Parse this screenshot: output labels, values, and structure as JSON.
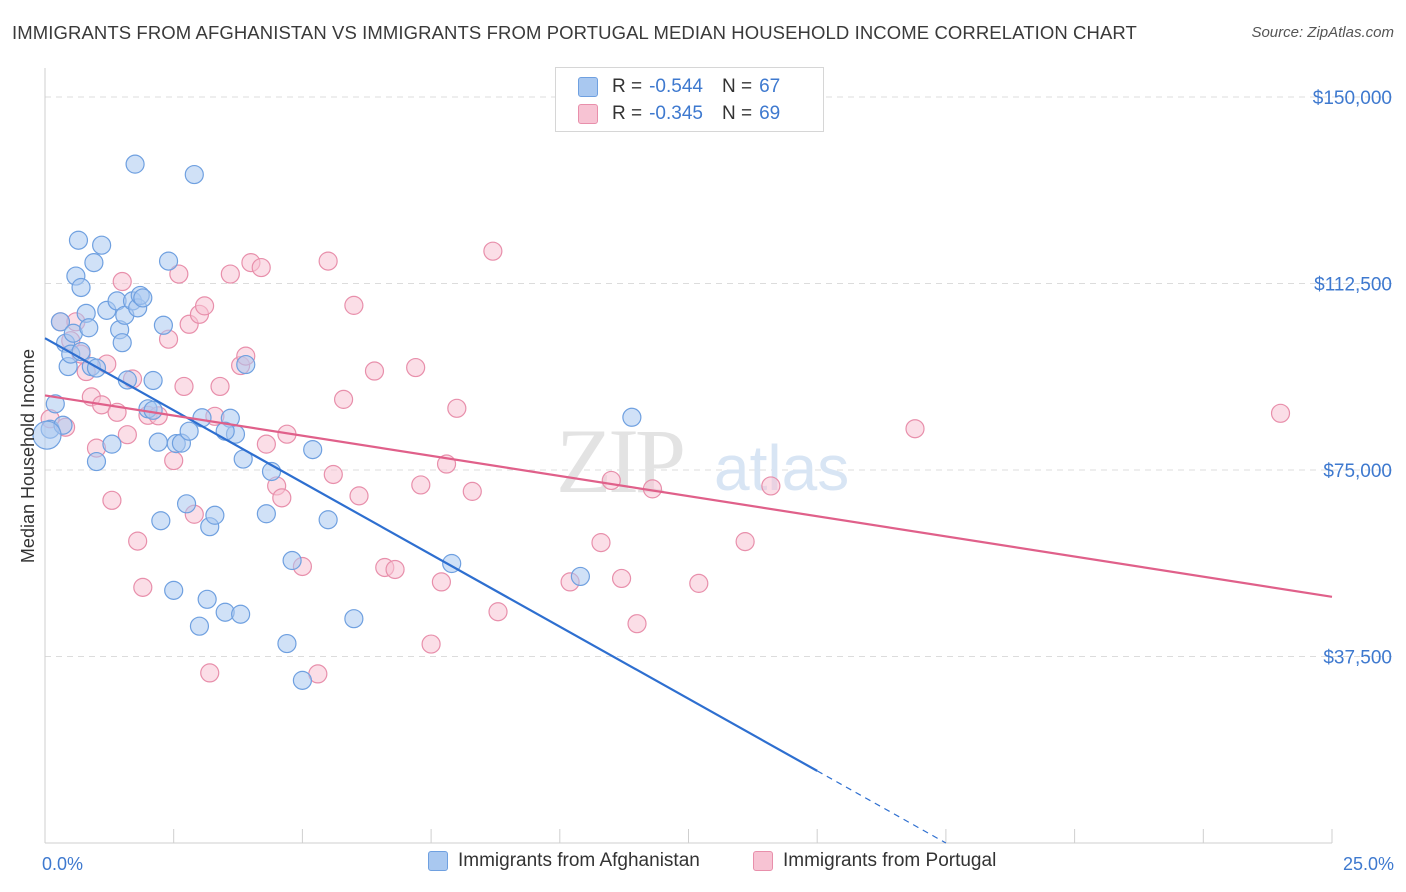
{
  "title": "IMMIGRANTS FROM AFGHANISTAN VS IMMIGRANTS FROM PORTUGAL MEDIAN HOUSEHOLD INCOME CORRELATION CHART",
  "source": "Source: ZipAtlas.com",
  "watermark": {
    "zip": "ZIP",
    "atlas": "atlas"
  },
  "legend": {
    "r_label": "R =",
    "n_label": "N =",
    "rows": [
      {
        "r": "-0.544",
        "n": "67",
        "color": "#a9c8f0",
        "border": "#6fa0e0"
      },
      {
        "r": "-0.345",
        "n": "69",
        "color": "#f7c3d3",
        "border": "#e88fab"
      }
    ]
  },
  "chart_data": {
    "type": "scatter",
    "title": "IMMIGRANTS FROM AFGHANISTAN VS IMMIGRANTS FROM PORTUGAL MEDIAN HOUSEHOLD INCOME CORRELATION CHART",
    "xlabel": "",
    "ylabel": "Median Household Income",
    "xlim": [
      0,
      25
    ],
    "ylim": [
      0,
      156000
    ],
    "x_tick_labels": [
      "0.0%",
      "25.0%"
    ],
    "y_ticks": [
      37500,
      75000,
      112500,
      150000
    ],
    "y_tick_labels": [
      "$37,500",
      "$75,000",
      "$112,500",
      "$150,000"
    ],
    "grid": true,
    "legend_placement": "bottom",
    "series": [
      {
        "name": "Immigrants from Afghanistan",
        "color": "#a9c8f0",
        "stroke": "#6fa0e0",
        "line_color": "#2e6fd0",
        "trend": {
          "x0": 0,
          "y0": 101500,
          "x1": 15,
          "y1": 14500,
          "dash_x1": 17.5,
          "dash_y1": 0
        },
        "points": [
          [
            0.1,
            83200
          ],
          [
            0.2,
            88300
          ],
          [
            0.3,
            104800
          ],
          [
            0.35,
            84000
          ],
          [
            0.4,
            100500
          ],
          [
            0.45,
            95800
          ],
          [
            0.5,
            98300
          ],
          [
            0.55,
            102500
          ],
          [
            0.6,
            114000
          ],
          [
            0.65,
            121200
          ],
          [
            0.7,
            111700
          ],
          [
            0.7,
            98800
          ],
          [
            0.8,
            106500
          ],
          [
            0.85,
            103600
          ],
          [
            0.9,
            95800
          ],
          [
            0.95,
            116700
          ],
          [
            1.0,
            76700
          ],
          [
            1.1,
            120200
          ],
          [
            1.2,
            107100
          ],
          [
            1.3,
            80200
          ],
          [
            1.4,
            109000
          ],
          [
            1.45,
            103200
          ],
          [
            1.5,
            100600
          ],
          [
            1.55,
            106100
          ],
          [
            1.6,
            93100
          ],
          [
            1.7,
            109000
          ],
          [
            1.75,
            136500
          ],
          [
            1.8,
            107600
          ],
          [
            1.85,
            110100
          ],
          [
            1.9,
            109600
          ],
          [
            2.0,
            87300
          ],
          [
            2.1,
            87000
          ],
          [
            2.2,
            80600
          ],
          [
            2.25,
            64800
          ],
          [
            2.3,
            104100
          ],
          [
            2.4,
            117000
          ],
          [
            2.5,
            50800
          ],
          [
            2.55,
            80300
          ],
          [
            2.65,
            80400
          ],
          [
            2.75,
            68200
          ],
          [
            2.8,
            82800
          ],
          [
            2.9,
            134400
          ],
          [
            3.0,
            43600
          ],
          [
            3.05,
            85500
          ],
          [
            3.15,
            49000
          ],
          [
            3.2,
            63600
          ],
          [
            3.3,
            65900
          ],
          [
            3.5,
            46400
          ],
          [
            3.6,
            85400
          ],
          [
            3.7,
            82200
          ],
          [
            3.8,
            46000
          ],
          [
            3.85,
            77200
          ],
          [
            3.9,
            96200
          ],
          [
            4.3,
            66200
          ],
          [
            4.4,
            74700
          ],
          [
            4.7,
            40100
          ],
          [
            4.8,
            56800
          ],
          [
            5.0,
            32700
          ],
          [
            5.2,
            79100
          ],
          [
            5.5,
            65000
          ],
          [
            6.0,
            45100
          ],
          [
            7.9,
            56200
          ],
          [
            10.4,
            53600
          ],
          [
            11.4,
            85600
          ],
          [
            2.1,
            93000
          ],
          [
            1.0,
            95500
          ],
          [
            3.5,
            82800
          ]
        ]
      },
      {
        "name": "Immigrants from Portugal",
        "color": "#f7c3d3",
        "stroke": "#e88fab",
        "line_color": "#e0608a",
        "trend": {
          "x0": 0,
          "y0": 90000,
          "x1": 25,
          "y1": 49500
        },
        "points": [
          [
            0.1,
            85300
          ],
          [
            0.3,
            104800
          ],
          [
            0.4,
            83600
          ],
          [
            0.5,
            101000
          ],
          [
            0.6,
            104800
          ],
          [
            0.7,
            98300
          ],
          [
            0.8,
            94800
          ],
          [
            0.9,
            89700
          ],
          [
            1.0,
            79400
          ],
          [
            1.1,
            88100
          ],
          [
            1.2,
            96300
          ],
          [
            1.3,
            68900
          ],
          [
            1.4,
            86600
          ],
          [
            1.5,
            112900
          ],
          [
            1.6,
            82100
          ],
          [
            1.7,
            93300
          ],
          [
            1.8,
            60700
          ],
          [
            1.9,
            51400
          ],
          [
            2.0,
            86000
          ],
          [
            2.2,
            85900
          ],
          [
            2.4,
            101300
          ],
          [
            2.5,
            76900
          ],
          [
            2.6,
            114400
          ],
          [
            2.7,
            91800
          ],
          [
            2.8,
            104300
          ],
          [
            2.9,
            66100
          ],
          [
            3.0,
            106300
          ],
          [
            3.1,
            108000
          ],
          [
            3.2,
            34200
          ],
          [
            3.3,
            85800
          ],
          [
            3.4,
            91800
          ],
          [
            3.6,
            114400
          ],
          [
            3.8,
            96000
          ],
          [
            3.9,
            97900
          ],
          [
            4.0,
            116700
          ],
          [
            4.2,
            115700
          ],
          [
            4.3,
            80200
          ],
          [
            4.5,
            71800
          ],
          [
            4.6,
            69400
          ],
          [
            4.7,
            82200
          ],
          [
            5.0,
            55600
          ],
          [
            5.3,
            34000
          ],
          [
            5.5,
            117000
          ],
          [
            5.6,
            74100
          ],
          [
            5.8,
            89200
          ],
          [
            6.0,
            108100
          ],
          [
            6.1,
            69800
          ],
          [
            6.4,
            94900
          ],
          [
            6.6,
            55400
          ],
          [
            6.8,
            55000
          ],
          [
            7.2,
            95600
          ],
          [
            7.3,
            72000
          ],
          [
            7.5,
            40000
          ],
          [
            7.7,
            52500
          ],
          [
            7.8,
            76200
          ],
          [
            8.0,
            87400
          ],
          [
            8.3,
            70700
          ],
          [
            8.7,
            119000
          ],
          [
            8.8,
            46500
          ],
          [
            10.2,
            52500
          ],
          [
            10.8,
            60400
          ],
          [
            11.0,
            72900
          ],
          [
            11.2,
            53200
          ],
          [
            11.5,
            44100
          ],
          [
            11.8,
            71200
          ],
          [
            12.7,
            52200
          ],
          [
            13.6,
            60600
          ],
          [
            14.1,
            71800
          ],
          [
            16.9,
            83300
          ]
        ],
        "extra_points": [
          [
            24.0,
            86400
          ]
        ]
      }
    ]
  }
}
